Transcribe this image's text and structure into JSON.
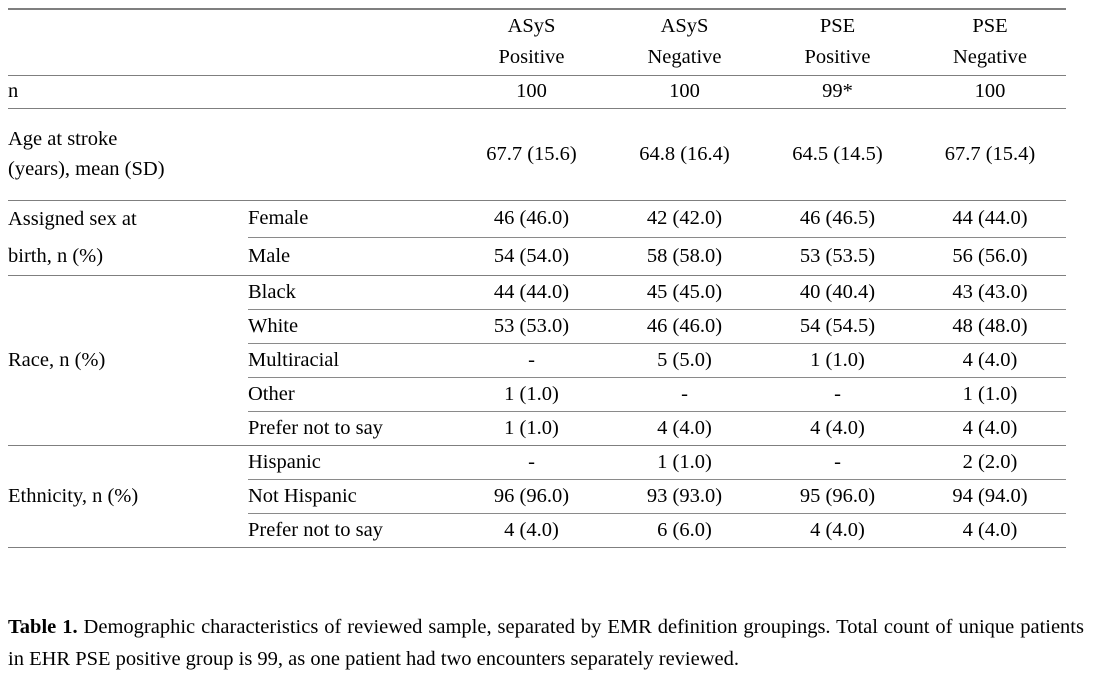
{
  "table": {
    "columns": [
      "ASyS\nPositive",
      "ASyS\nNegative",
      "PSE\nPositive",
      "PSE\nNegative"
    ],
    "n_row": {
      "label": "n",
      "values": [
        "100",
        "100",
        "99*",
        "100"
      ]
    },
    "age_row": {
      "label": "Age at stroke\n(years), mean (SD)",
      "values": [
        "67.7 (15.6)",
        "64.8 (16.4)",
        "64.5 (14.5)",
        "67.7 (15.4)"
      ]
    },
    "groups": [
      {
        "label": "Assigned sex at\nbirth, n (%)",
        "rows": [
          {
            "label": "Female",
            "values": [
              "46 (46.0)",
              "42 (42.0)",
              "46 (46.5)",
              "44 (44.0)"
            ]
          },
          {
            "label": "Male",
            "values": [
              "54 (54.0)",
              "58 (58.0)",
              "53 (53.5)",
              "56 (56.0)"
            ]
          }
        ]
      },
      {
        "label": "Race, n (%)",
        "rows": [
          {
            "label": "Black",
            "values": [
              "44 (44.0)",
              "45 (45.0)",
              "40 (40.4)",
              "43 (43.0)"
            ]
          },
          {
            "label": "White",
            "values": [
              "53 (53.0)",
              "46 (46.0)",
              "54 (54.5)",
              "48 (48.0)"
            ]
          },
          {
            "label": "Multiracial",
            "values": [
              "-",
              "5 (5.0)",
              "1 (1.0)",
              "4 (4.0)"
            ]
          },
          {
            "label": "Other",
            "values": [
              "1 (1.0)",
              "-",
              "-",
              "1 (1.0)"
            ]
          },
          {
            "label": "Prefer not to say",
            "values": [
              "1 (1.0)",
              "4 (4.0)",
              "4 (4.0)",
              "4 (4.0)"
            ]
          }
        ]
      },
      {
        "label": "Ethnicity, n (%)",
        "rows": [
          {
            "label": "Hispanic",
            "values": [
              "-",
              "1 (1.0)",
              "-",
              "2 (2.0)"
            ]
          },
          {
            "label": "Not Hispanic",
            "values": [
              "96 (96.0)",
              "93 (93.0)",
              "95 (96.0)",
              "94 (94.0)"
            ]
          },
          {
            "label": "Prefer not to say",
            "values": [
              "4 (4.0)",
              "6 (6.0)",
              "4 (4.0)",
              "4 (4.0)"
            ]
          }
        ]
      }
    ]
  },
  "caption": {
    "label": "Table 1.",
    "text": "Demographic characteristics of reviewed sample, separated by EMR definition groupings. Total count of unique patients in EHR PSE positive group is 99, as one patient had two encounters separately reviewed."
  }
}
